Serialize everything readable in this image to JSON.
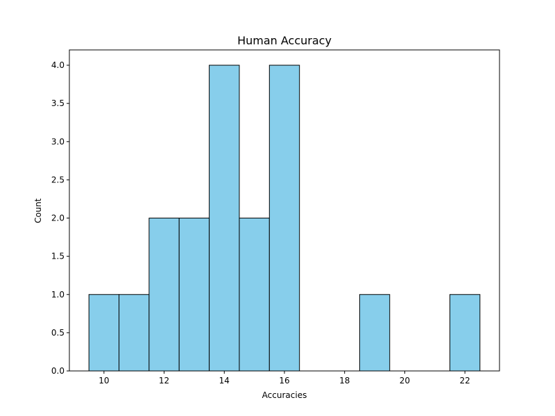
{
  "chart_data": {
    "type": "bar",
    "subtype": "histogram",
    "title": "Human Accuracy",
    "xlabel": "Accuracies",
    "ylabel": "Count",
    "bins": [
      {
        "x0": 9.5,
        "x1": 10.5,
        "count": 1
      },
      {
        "x0": 10.5,
        "x1": 11.5,
        "count": 1
      },
      {
        "x0": 11.5,
        "x1": 12.5,
        "count": 2
      },
      {
        "x0": 12.5,
        "x1": 13.5,
        "count": 2
      },
      {
        "x0": 13.5,
        "x1": 14.5,
        "count": 4
      },
      {
        "x0": 14.5,
        "x1": 15.5,
        "count": 2
      },
      {
        "x0": 15.5,
        "x1": 16.5,
        "count": 4
      },
      {
        "x0": 16.5,
        "x1": 17.5,
        "count": 0
      },
      {
        "x0": 17.5,
        "x1": 18.5,
        "count": 0
      },
      {
        "x0": 18.5,
        "x1": 19.5,
        "count": 1
      },
      {
        "x0": 19.5,
        "x1": 20.5,
        "count": 0
      },
      {
        "x0": 20.5,
        "x1": 21.5,
        "count": 0
      },
      {
        "x0": 21.5,
        "x1": 22.5,
        "count": 1
      }
    ],
    "xlim": [
      8.85,
      23.15
    ],
    "ylim": [
      0,
      4.2
    ],
    "xticks": [
      10,
      12,
      14,
      16,
      18,
      20,
      22
    ],
    "xtick_labels": [
      "10",
      "12",
      "14",
      "16",
      "18",
      "20",
      "22"
    ],
    "yticks": [
      0,
      0.5,
      1,
      1.5,
      2,
      2.5,
      3,
      3.5,
      4
    ],
    "ytick_labels": [
      "0.0",
      "0.5",
      "1.0",
      "1.5",
      "2.0",
      "2.5",
      "3.0",
      "3.5",
      "4.0"
    ],
    "bar_color": "#87ceeb",
    "edge_color": "#000000",
    "grid": false,
    "legend": false
  }
}
